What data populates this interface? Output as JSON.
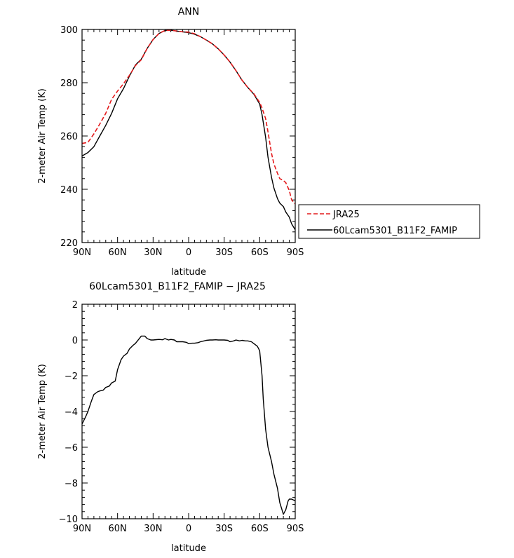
{
  "chart_data": [
    {
      "type": "line",
      "title": "ANN",
      "xlabel": "latitude",
      "ylabel": "2-meter Air Temp (K)",
      "xlim": [
        90,
        -90
      ],
      "ylim": [
        220,
        300
      ],
      "x_tick_values": [
        90,
        60,
        30,
        0,
        -30,
        -60,
        -90
      ],
      "x_tick_labels": [
        "90N",
        "60N",
        "30N",
        "0",
        "30S",
        "60S",
        "90S"
      ],
      "y_tick_values": [
        220,
        240,
        260,
        280,
        300
      ],
      "y_tick_labels": [
        "220",
        "240",
        "260",
        "280",
        "300"
      ],
      "grid": false,
      "legend": "outside-right",
      "series": [
        {
          "name": "JRA25",
          "color": "#e41a1c",
          "dash": "dashed",
          "x": [
            90,
            85,
            80,
            75,
            70,
            65,
            60,
            55,
            50,
            45,
            40,
            35,
            30,
            25,
            20,
            15,
            10,
            5,
            0,
            -5,
            -10,
            -15,
            -20,
            -25,
            -30,
            -35,
            -40,
            -45,
            -50,
            -55,
            -60,
            -62,
            -65,
            -67,
            -70,
            -72,
            -75,
            -77,
            -80,
            -82,
            -85,
            -87,
            -90
          ],
          "y": [
            257.2,
            257.6,
            260.8,
            264.5,
            268.5,
            273.8,
            276.9,
            279.6,
            282.8,
            286.4,
            288.6,
            292.9,
            296.2,
            298.5,
            299.6,
            299.7,
            299.4,
            299.1,
            299.0,
            298.4,
            297.3,
            296.0,
            294.6,
            292.7,
            290.4,
            287.7,
            284.5,
            281.0,
            278.2,
            275.9,
            272.6,
            270.5,
            266.5,
            261.5,
            253.5,
            249.5,
            246.0,
            244.0,
            243.3,
            242.5,
            239.5,
            236.0,
            234.5
          ]
        },
        {
          "name": "60Lcam5301_B11F2_FAMIP",
          "color": "#000000",
          "dash": "solid",
          "x": [
            90,
            85,
            80,
            75,
            70,
            65,
            60,
            55,
            50,
            45,
            40,
            35,
            30,
            25,
            20,
            15,
            10,
            5,
            0,
            -5,
            -10,
            -15,
            -20,
            -25,
            -30,
            -35,
            -40,
            -45,
            -50,
            -55,
            -60,
            -62,
            -65,
            -67,
            -70,
            -72,
            -75,
            -77,
            -80,
            -82,
            -85,
            -87,
            -90
          ],
          "y": [
            252.5,
            253.8,
            256.0,
            260.0,
            264.0,
            268.5,
            274.0,
            277.8,
            282.5,
            286.6,
            288.8,
            292.9,
            296.2,
            298.5,
            299.6,
            299.7,
            299.4,
            299.1,
            298.8,
            298.2,
            297.3,
            296.0,
            294.6,
            292.7,
            290.4,
            287.7,
            284.5,
            281.0,
            278.2,
            275.7,
            272.0,
            268.0,
            259.5,
            252.0,
            244.5,
            240.5,
            236.5,
            234.8,
            233.5,
            231.5,
            229.5,
            227.0,
            224.8
          ]
        }
      ]
    },
    {
      "type": "line",
      "title": "60Lcam5301_B11F2_FAMIP − JRA25",
      "xlabel": "latitude",
      "ylabel": "2-meter Air Temp (K)",
      "xlim": [
        90,
        -90
      ],
      "ylim": [
        -10,
        2
      ],
      "x_tick_values": [
        90,
        60,
        30,
        0,
        -30,
        -60,
        -90
      ],
      "x_tick_labels": [
        "90N",
        "60N",
        "30N",
        "0",
        "30S",
        "60S",
        "90S"
      ],
      "y_tick_values": [
        -10,
        -8,
        -6,
        -4,
        -2,
        0,
        2
      ],
      "y_tick_labels": [
        "−10",
        "−8",
        "−6",
        "−4",
        "−2",
        "0",
        "2"
      ],
      "grid": false,
      "series": [
        {
          "color": "#000000",
          "dash": "solid",
          "x": [
            90,
            87,
            85,
            82,
            80,
            77,
            75,
            72,
            70,
            67,
            65,
            62,
            60,
            57,
            55,
            52,
            50,
            47,
            45,
            42,
            40,
            37,
            35,
            32,
            30,
            27,
            25,
            22,
            20,
            17,
            15,
            12,
            10,
            7,
            5,
            2,
            0,
            -3,
            -5,
            -8,
            -10,
            -13,
            -15,
            -18,
            -20,
            -23,
            -25,
            -28,
            -30,
            -33,
            -35,
            -38,
            -40,
            -43,
            -45,
            -48,
            -50,
            -53,
            -55,
            -58,
            -60,
            -62,
            -63,
            -65,
            -67,
            -70,
            -72,
            -75,
            -77,
            -80,
            -82,
            -84,
            -85,
            -87,
            -90
          ],
          "y": [
            -4.7,
            -4.3,
            -4.0,
            -3.4,
            -3.05,
            -2.9,
            -2.85,
            -2.8,
            -2.65,
            -2.58,
            -2.4,
            -2.3,
            -1.65,
            -1.1,
            -0.9,
            -0.75,
            -0.5,
            -0.3,
            -0.2,
            0.05,
            0.22,
            0.22,
            0.08,
            0.0,
            0.0,
            0.02,
            0.03,
            0.01,
            0.08,
            0.0,
            0.03,
            0.0,
            -0.1,
            -0.1,
            -0.1,
            -0.13,
            -0.2,
            -0.18,
            -0.18,
            -0.15,
            -0.1,
            -0.05,
            -0.02,
            0.0,
            0.0,
            0.01,
            0.0,
            0.0,
            0.0,
            -0.02,
            -0.1,
            -0.05,
            0.0,
            -0.05,
            -0.02,
            -0.05,
            -0.05,
            -0.1,
            -0.2,
            -0.35,
            -0.6,
            -2.0,
            -3.3,
            -5.0,
            -6.0,
            -6.8,
            -7.5,
            -8.3,
            -9.1,
            -9.75,
            -9.5,
            -9.0,
            -8.9,
            -8.9,
            -9.0
          ]
        }
      ]
    }
  ]
}
